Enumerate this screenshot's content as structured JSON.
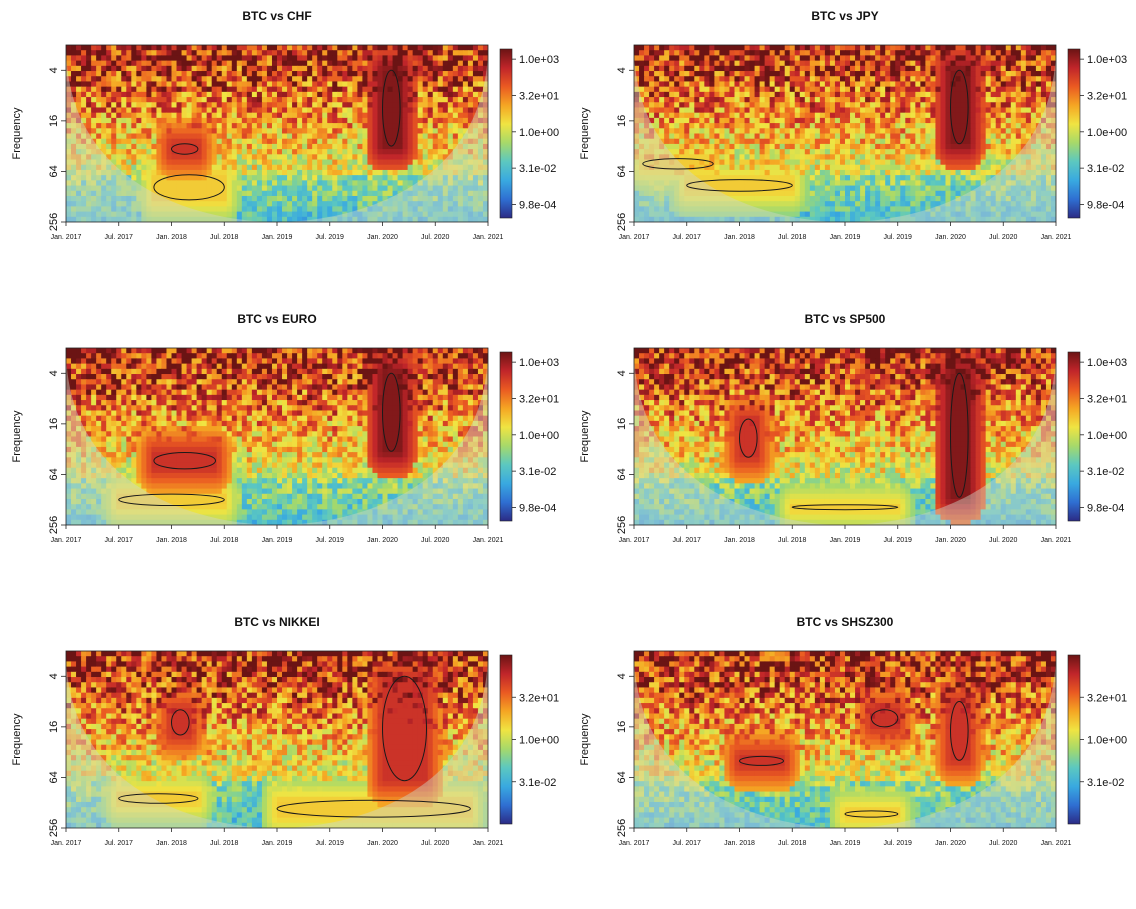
{
  "figure": {
    "y_axis_label": "Frequency",
    "x_tick_labels": [
      "Jan. 2017",
      "Jul. 2017",
      "Jan. 2018",
      "Jul. 2018",
      "Jan. 2019",
      "Jul. 2019",
      "Jan. 2020",
      "Jul. 2020",
      "Jan. 2021"
    ],
    "y_tick_labels": [
      "4",
      "16",
      "64",
      "256"
    ]
  },
  "colors": {
    "palette": [
      "#2b2b85",
      "#2f6fd2",
      "#39a9e0",
      "#5cc8c0",
      "#a6d96a",
      "#f0e442",
      "#f5a623",
      "#ea5a22",
      "#c0252a",
      "#6b1414"
    ],
    "cone_of_influence_fade": "#cfd8c8",
    "contour": "#1a1a1a"
  },
  "chart_data": [
    {
      "type": "heatmap",
      "title": "BTC vs CHF",
      "xlabel": "",
      "ylabel": "Frequency",
      "x_range": [
        "Jan. 2017",
        "Jan. 2021"
      ],
      "y_ticks": [
        4,
        16,
        64,
        256
      ],
      "y_scale": "log2",
      "colorbar": {
        "scale": "log",
        "ticks": [
          "1.0e+03",
          "3.2e+01",
          "1.0e+00",
          "3.1e-02",
          "9.8e-04"
        ]
      },
      "hotspots": [
        {
          "start": "Jan. 2020",
          "end": "Mar. 2020",
          "frequency_low": 4,
          "frequency_high": 32,
          "level": "1.0e+03"
        },
        {
          "start": "Jan. 2018",
          "end": "Apr. 2018",
          "frequency_low": 30,
          "frequency_high": 40,
          "level": "3.2e+01"
        },
        {
          "start": "Nov. 2017",
          "end": "Jul. 2018",
          "frequency_low": 70,
          "frequency_high": 140,
          "level": "1.0e+00"
        }
      ]
    },
    {
      "type": "heatmap",
      "title": "BTC vs JPY",
      "xlabel": "",
      "ylabel": "Frequency",
      "x_range": [
        "Jan. 2017",
        "Jan. 2021"
      ],
      "y_ticks": [
        4,
        16,
        64,
        256
      ],
      "y_scale": "log2",
      "colorbar": {
        "scale": "log",
        "ticks": [
          "1.0e+03",
          "3.2e+01",
          "1.0e+00",
          "3.1e-02",
          "9.8e-04"
        ]
      },
      "hotspots": [
        {
          "start": "Jan. 2020",
          "end": "Mar. 2020",
          "frequency_low": 4,
          "frequency_high": 30,
          "level": "1.0e+03"
        },
        {
          "start": "Feb. 2017",
          "end": "Oct. 2017",
          "frequency_low": 45,
          "frequency_high": 60,
          "level": "1.0e+00"
        },
        {
          "start": "Jul. 2017",
          "end": "Jul. 2018",
          "frequency_low": 80,
          "frequency_high": 110,
          "level": "1.0e+00"
        }
      ]
    },
    {
      "type": "heatmap",
      "title": "BTC vs EURO",
      "xlabel": "",
      "ylabel": "Frequency",
      "x_range": [
        "Jan. 2017",
        "Jan. 2021"
      ],
      "y_ticks": [
        4,
        16,
        64,
        256
      ],
      "y_scale": "log2",
      "colorbar": {
        "scale": "log",
        "ticks": [
          "1.0e+03",
          "3.2e+01",
          "1.0e+00",
          "3.1e-02",
          "9.8e-04"
        ]
      },
      "hotspots": [
        {
          "start": "Jan. 2020",
          "end": "Mar. 2020",
          "frequency_low": 4,
          "frequency_high": 34,
          "level": "1.0e+03"
        },
        {
          "start": "Nov. 2017",
          "end": "Jun. 2018",
          "frequency_low": 35,
          "frequency_high": 55,
          "level": "3.2e+01"
        },
        {
          "start": "Jul. 2017",
          "end": "Jul. 2018",
          "frequency_low": 110,
          "frequency_high": 150,
          "level": "1.0e+00"
        }
      ]
    },
    {
      "type": "heatmap",
      "title": "BTC vs SP500",
      "xlabel": "",
      "ylabel": "Frequency",
      "x_range": [
        "Jan. 2017",
        "Jan. 2021"
      ],
      "y_ticks": [
        4,
        16,
        64,
        256
      ],
      "y_scale": "log2",
      "colorbar": {
        "scale": "log",
        "ticks": [
          "1.0e+03",
          "3.2e+01",
          "1.0e+00",
          "3.1e-02",
          "9.8e-04"
        ]
      },
      "hotspots": [
        {
          "start": "Jan. 2020",
          "end": "Mar. 2020",
          "frequency_low": 4,
          "frequency_high": 120,
          "level": "1.0e+03"
        },
        {
          "start": "Jan. 2018",
          "end": "Mar. 2018",
          "frequency_low": 14,
          "frequency_high": 40,
          "level": "3.2e+01"
        },
        {
          "start": "Jul. 2018",
          "end": "Jul. 2019",
          "frequency_low": 150,
          "frequency_high": 165,
          "level": "1.0e+00"
        }
      ]
    },
    {
      "type": "heatmap",
      "title": "BTC vs NIKKEI",
      "xlabel": "",
      "ylabel": "Frequency",
      "x_range": [
        "Jan. 2017",
        "Jan. 2021"
      ],
      "y_ticks": [
        4,
        16,
        64,
        256
      ],
      "y_scale": "log2",
      "colorbar": {
        "scale": "log",
        "ticks": [
          "3.2e+01",
          "1.0e+00",
          "3.1e-02"
        ]
      },
      "hotspots": [
        {
          "start": "Jan. 2020",
          "end": "Jun. 2020",
          "frequency_low": 4,
          "frequency_high": 70,
          "level": "3.2e+01"
        },
        {
          "start": "Jan. 2018",
          "end": "Mar. 2018",
          "frequency_low": 10,
          "frequency_high": 20,
          "level": "3.2e+01"
        },
        {
          "start": "Jul. 2017",
          "end": "Apr. 2018",
          "frequency_low": 100,
          "frequency_high": 130,
          "level": "1.0e+00"
        },
        {
          "start": "Jan. 2019",
          "end": "Nov. 2020",
          "frequency_low": 120,
          "frequency_high": 190,
          "level": "1.0e+00"
        }
      ]
    },
    {
      "type": "heatmap",
      "title": "BTC vs SHSZ300",
      "xlabel": "",
      "ylabel": "Frequency",
      "x_range": [
        "Jan. 2017",
        "Jan. 2021"
      ],
      "y_ticks": [
        4,
        16,
        64,
        256
      ],
      "y_scale": "log2",
      "colorbar": {
        "scale": "log",
        "ticks": [
          "3.2e+01",
          "1.0e+00",
          "3.1e-02"
        ]
      },
      "hotspots": [
        {
          "start": "Jan. 2020",
          "end": "Mar. 2020",
          "frequency_low": 8,
          "frequency_high": 40,
          "level": "3.2e+01"
        },
        {
          "start": "Apr. 2019",
          "end": "Jul. 2019",
          "frequency_low": 10,
          "frequency_high": 16,
          "level": "3.2e+01"
        },
        {
          "start": "Jan. 2018",
          "end": "Jun. 2018",
          "frequency_low": 36,
          "frequency_high": 46,
          "level": "3.2e+01"
        },
        {
          "start": "Jan. 2019",
          "end": "Jul. 2019",
          "frequency_low": 160,
          "frequency_high": 190,
          "level": "1.0e+00"
        }
      ]
    }
  ]
}
